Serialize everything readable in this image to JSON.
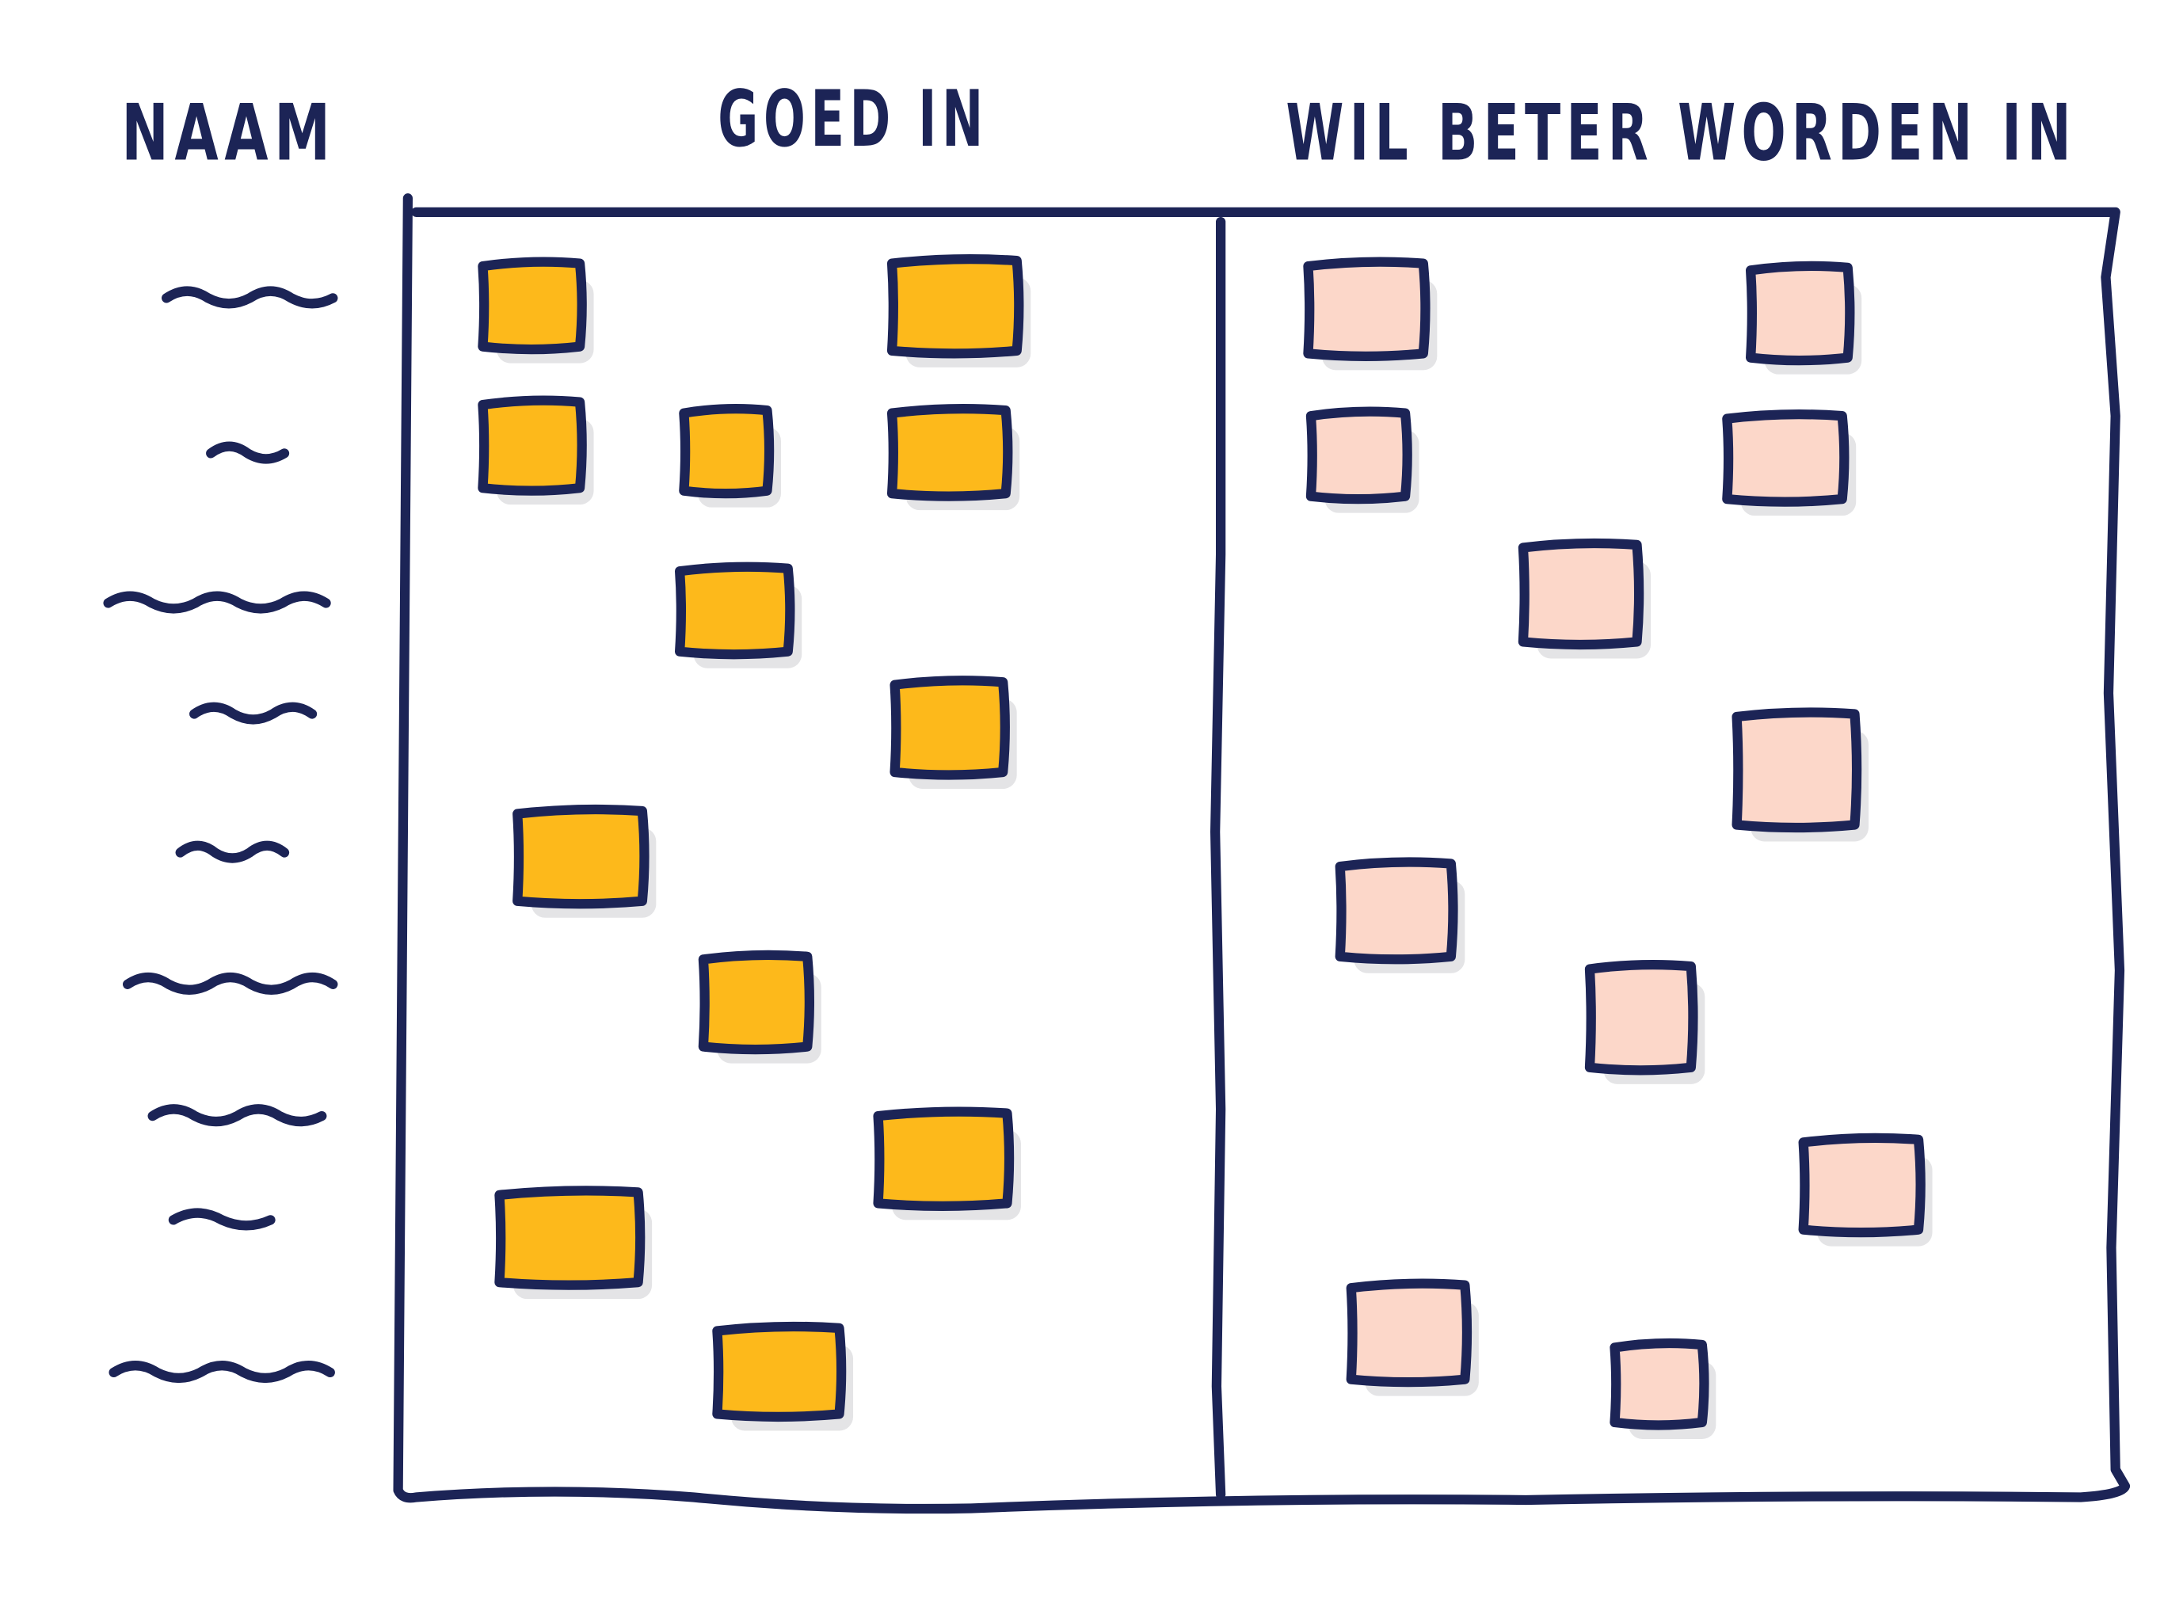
{
  "header": {
    "columns": [
      "NAAM",
      "GOED IN",
      "WIL BETER WORDEN IN"
    ]
  }
}
